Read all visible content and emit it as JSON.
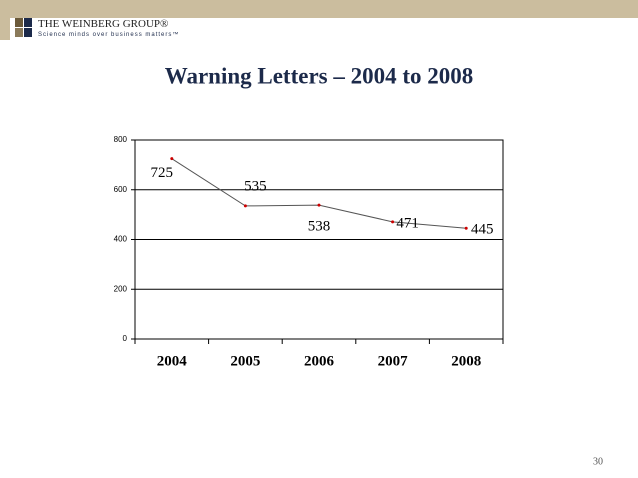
{
  "header": {
    "logo_title": "THE WEINBERG GROUP®",
    "logo_tagline": "Science minds over business matters™"
  },
  "chart_data": {
    "type": "line",
    "title": "Warning Letters – 2004 to 2008",
    "categories": [
      "2004",
      "2005",
      "2006",
      "2007",
      "2008"
    ],
    "series": [
      {
        "values": [
          725,
          535,
          538,
          471,
          445
        ],
        "color": "#cc0000"
      }
    ],
    "line_color": "#555555",
    "ylim": [
      0,
      800
    ],
    "yticks": [
      0,
      200,
      400,
      600,
      800
    ],
    "grid": true
  },
  "page_number": "30"
}
